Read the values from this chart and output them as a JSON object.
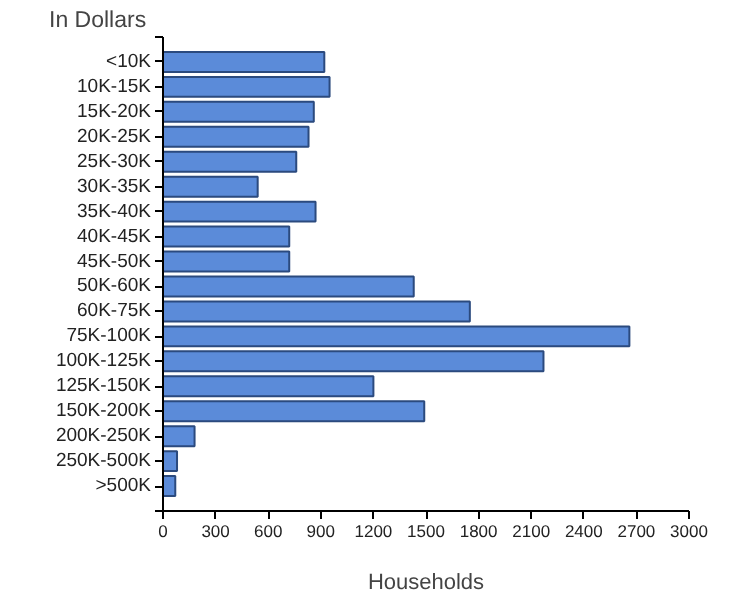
{
  "chart_data": {
    "type": "bar",
    "orientation": "horizontal",
    "ylabel": "In Dollars",
    "xlabel": "Households",
    "categories": [
      "<10K",
      "10K-15K",
      "15K-20K",
      "20K-25K",
      "25K-30K",
      "30K-35K",
      "35K-40K",
      "40K-45K",
      "45K-50K",
      "50K-60K",
      "60K-75K",
      "75K-100K",
      "100K-125K",
      "125K-150K",
      "150K-200K",
      "200K-250K",
      "250K-500K",
      ">500K"
    ],
    "values": [
      920,
      950,
      860,
      830,
      760,
      540,
      870,
      720,
      720,
      1430,
      1750,
      2660,
      2170,
      1200,
      1490,
      180,
      80,
      70
    ],
    "color": "#5b8bd9",
    "xlim": [
      0,
      3000
    ],
    "xticks": [
      0,
      300,
      600,
      900,
      1200,
      1500,
      1800,
      2100,
      2400,
      2700,
      3000
    ]
  }
}
